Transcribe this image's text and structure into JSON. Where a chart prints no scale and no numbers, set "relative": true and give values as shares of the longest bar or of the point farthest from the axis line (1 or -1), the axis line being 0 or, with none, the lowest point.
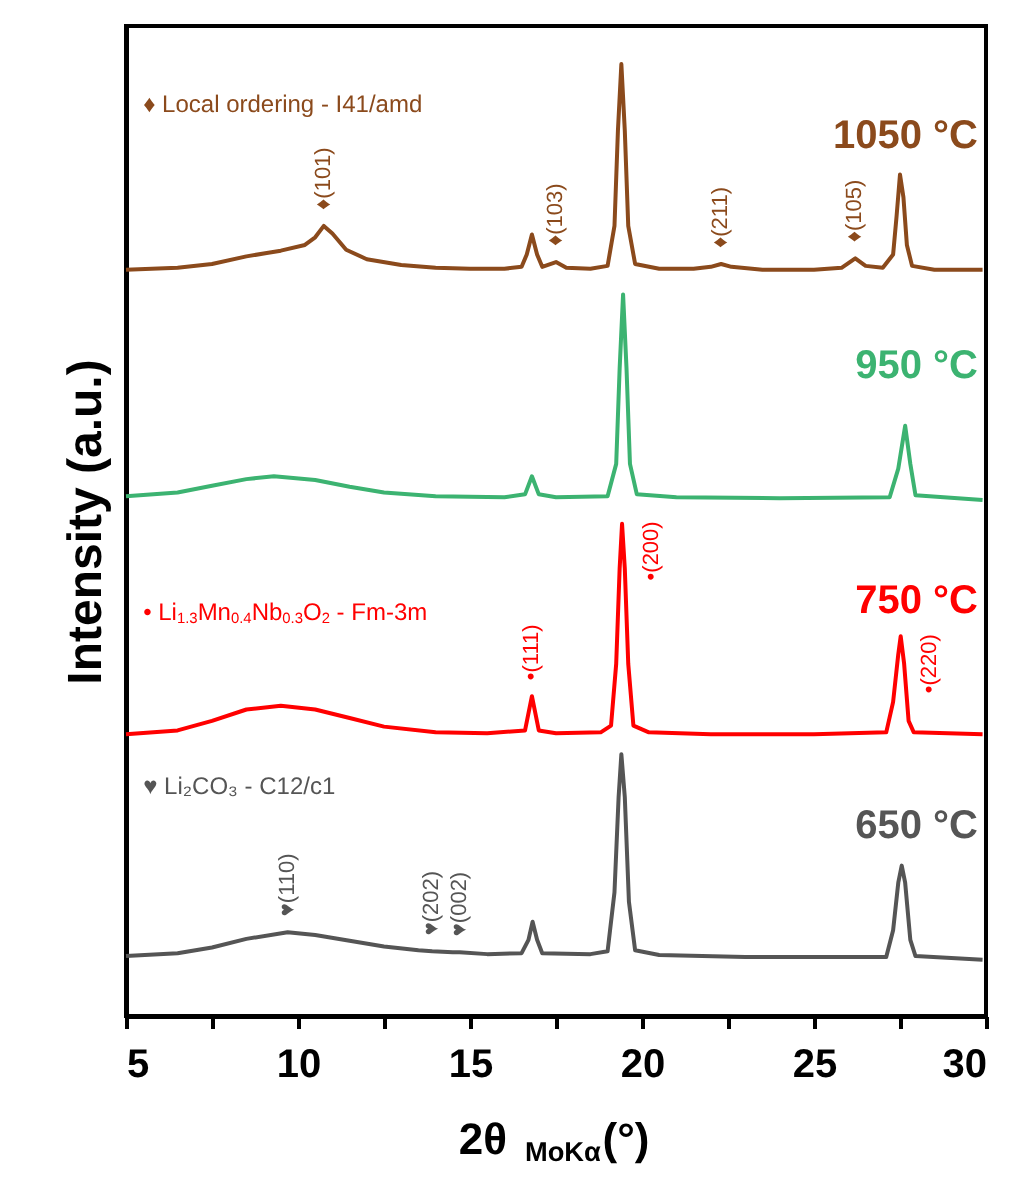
{
  "chart_data": {
    "type": "line",
    "relative": true,
    "xlabel": "2θ $_{MoKα}$(°)",
    "ylabel": "Intensity (a.u.)",
    "xlim": [
      5,
      30
    ],
    "xticks": [
      5,
      {
        "value": 7.5,
        "label": null
      },
      10,
      {
        "value": 12.5,
        "label": null
      },
      15,
      {
        "value": 17.5,
        "label": null
      },
      20,
      {
        "value": 22.5,
        "label": null
      },
      25,
      {
        "value": 27.5,
        "label": null
      },
      30
    ],
    "series": [
      {
        "name": "1050 °C",
        "color": "#8b4a1c",
        "x": [
          5.0,
          6.5,
          7.5,
          8.5,
          9.5,
          10.2,
          10.5,
          10.75,
          11.0,
          11.4,
          12,
          13,
          14,
          15,
          16.0,
          16.5,
          16.65,
          16.8,
          16.95,
          17.1,
          17.5,
          17.8,
          18.5,
          19.0,
          19.2,
          19.3,
          19.4,
          19.5,
          19.6,
          19.8,
          20.5,
          21.5,
          22.0,
          22.3,
          22.6,
          23.5,
          25,
          25.8,
          26.2,
          26.5,
          27.0,
          27.3,
          27.4,
          27.5,
          27.6,
          27.7,
          27.85,
          28.5,
          29.9
        ],
        "values": [
          0.784,
          0.786,
          0.79,
          0.798,
          0.804,
          0.81,
          0.818,
          0.83,
          0.822,
          0.805,
          0.795,
          0.789,
          0.786,
          0.785,
          0.785,
          0.787,
          0.8,
          0.821,
          0.8,
          0.787,
          0.792,
          0.786,
          0.785,
          0.788,
          0.83,
          0.93,
          1.0,
          0.93,
          0.83,
          0.79,
          0.785,
          0.785,
          0.787,
          0.79,
          0.787,
          0.784,
          0.784,
          0.786,
          0.796,
          0.788,
          0.786,
          0.8,
          0.84,
          0.884,
          0.86,
          0.81,
          0.788,
          0.784,
          0.784
        ]
      },
      {
        "name": "950 °C",
        "color": "#3cb371",
        "x": [
          5,
          6.5,
          7.5,
          8.5,
          9.3,
          10.5,
          11.5,
          12.5,
          14,
          16.0,
          16.6,
          16.8,
          17.0,
          17.5,
          19.0,
          19.25,
          19.35,
          19.45,
          19.55,
          19.65,
          19.85,
          21,
          24,
          27.2,
          27.45,
          27.65,
          27.8,
          27.95,
          29.9
        ],
        "values": [
          0.546,
          0.55,
          0.557,
          0.564,
          0.567,
          0.563,
          0.556,
          0.55,
          0.546,
          0.545,
          0.548,
          0.567,
          0.548,
          0.545,
          0.546,
          0.58,
          0.68,
          0.758,
          0.68,
          0.58,
          0.548,
          0.545,
          0.544,
          0.545,
          0.575,
          0.62,
          0.58,
          0.547,
          0.542
        ]
      },
      {
        "name": "750 °C",
        "color": "#ff0000",
        "x": [
          5,
          6.5,
          7.5,
          8.5,
          9.5,
          10.5,
          11.5,
          12.5,
          14,
          15.5,
          16.6,
          16.8,
          17.0,
          17.5,
          18.8,
          19.1,
          19.25,
          19.35,
          19.42,
          19.5,
          19.6,
          19.75,
          20.2,
          22,
          25,
          27.1,
          27.3,
          27.45,
          27.52,
          27.62,
          27.75,
          27.9,
          29.9
        ],
        "values": [
          0.296,
          0.3,
          0.31,
          0.322,
          0.326,
          0.322,
          0.313,
          0.304,
          0.298,
          0.297,
          0.3,
          0.336,
          0.3,
          0.297,
          0.298,
          0.305,
          0.37,
          0.47,
          0.517,
          0.47,
          0.37,
          0.305,
          0.298,
          0.296,
          0.296,
          0.298,
          0.33,
          0.38,
          0.399,
          0.37,
          0.31,
          0.298,
          0.296
        ]
      },
      {
        "name": "650 °C",
        "color": "#555555",
        "x": [
          5,
          6.5,
          7.5,
          8.5,
          9.7,
          10.5,
          11.5,
          12.5,
          13.5,
          13.9,
          14.5,
          14.7,
          15.5,
          16.5,
          16.7,
          16.82,
          16.95,
          17.1,
          18.5,
          19.0,
          19.2,
          19.32,
          19.4,
          19.5,
          19.62,
          19.8,
          20.5,
          23,
          27.1,
          27.3,
          27.45,
          27.55,
          27.65,
          27.8,
          27.95,
          29.9
        ],
        "values": [
          0.063,
          0.066,
          0.072,
          0.081,
          0.088,
          0.085,
          0.079,
          0.073,
          0.069,
          0.068,
          0.067,
          0.067,
          0.065,
          0.066,
          0.08,
          0.099,
          0.08,
          0.066,
          0.065,
          0.068,
          0.13,
          0.23,
          0.275,
          0.23,
          0.12,
          0.069,
          0.064,
          0.062,
          0.062,
          0.09,
          0.14,
          0.158,
          0.14,
          0.08,
          0.063,
          0.059
        ]
      }
    ],
    "annotations": [
      "♦ Local ordering - I41/amd",
      "• Li$_{1.3}$Mn$_{0.4}$Nb$_{0.3}$O$_{2}$ - Fm-3m",
      "♥ Li₂CO₃ - C12/c1",
      {
        "text": "♦(101)",
        "x": 10.75,
        "y": 0.83
      },
      {
        "text": "♦(103)",
        "x": 17.5,
        "y": 0.792
      },
      {
        "text": "♦(211)",
        "x": 22.3,
        "y": 0.79
      },
      {
        "text": "♦(105)",
        "x": 26.2,
        "y": 0.796
      },
      "•(200)",
      {
        "text": "•(111)",
        "x": 16.8,
        "y": 0.336
      },
      "•(220)",
      {
        "text": "♥(110)",
        "x": 9.7,
        "y": 0.088
      },
      {
        "text": "♥(202)",
        "x": 13.9,
        "y": 0.068
      },
      {
        "text": "♥(002)",
        "x": 14.7,
        "y": 0.067
      }
    ]
  }
}
